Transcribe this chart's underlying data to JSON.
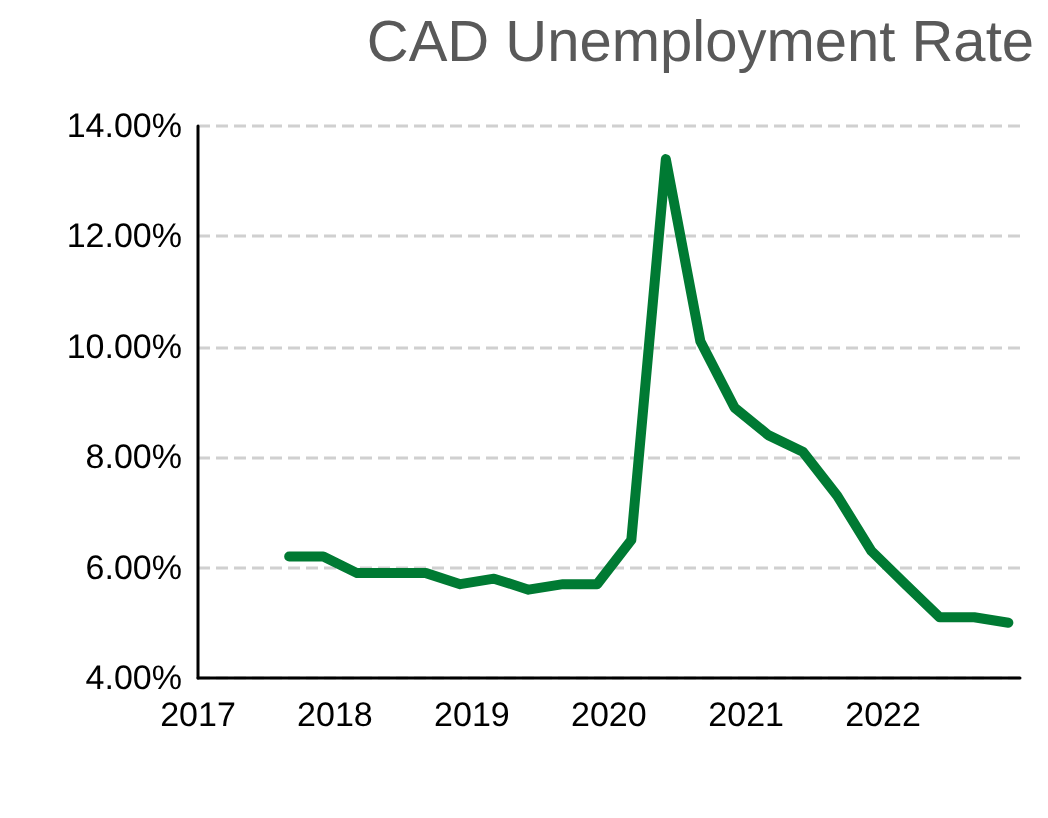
{
  "chart_data": {
    "type": "line",
    "title": "CAD Unemployment Rate",
    "x": [
      "2017-09",
      "2017-12",
      "2018-03",
      "2018-06",
      "2018-09",
      "2018-12",
      "2019-03",
      "2019-06",
      "2019-09",
      "2019-12",
      "2020-03",
      "2020-06",
      "2020-09",
      "2020-12",
      "2021-03",
      "2021-06",
      "2021-09",
      "2021-12",
      "2022-03",
      "2022-06",
      "2022-09",
      "2022-12"
    ],
    "series": [
      {
        "color": "#007a33",
        "values": [
          6.2,
          6.2,
          5.9,
          5.9,
          5.9,
          5.7,
          5.8,
          5.6,
          5.7,
          5.7,
          6.5,
          13.4,
          10.1,
          8.9,
          8.4,
          8.1,
          7.3,
          6.3,
          5.7,
          5.1,
          5.1,
          5.0
        ]
      }
    ],
    "xlim": [
      "2017",
      "2023"
    ],
    "xticks": [
      "2017",
      "2018",
      "2019",
      "2020",
      "2021",
      "2022"
    ],
    "ylim": [
      4,
      14
    ],
    "yticks": [
      {
        "value": 4,
        "label": "4.00%"
      },
      {
        "value": 6,
        "label": "6.00%"
      },
      {
        "value": 8,
        "label": "8.00%"
      },
      {
        "value": 10,
        "label": "10.00%"
      },
      {
        "value": 12,
        "label": "12.00%"
      },
      {
        "value": 14,
        "label": "14.00%"
      }
    ],
    "grid": "y",
    "marker": "none",
    "line_style": "solid"
  }
}
